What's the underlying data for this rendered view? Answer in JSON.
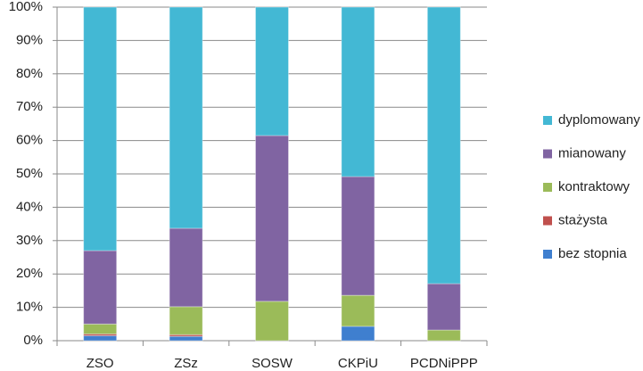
{
  "chart_data": {
    "type": "stacked_bar_100",
    "categories": [
      "ZSO",
      "ZSz",
      "SOSW",
      "CKPiU",
      "PCDNiPPP"
    ],
    "series": [
      {
        "name": "bez stopnia",
        "color": "#3f7fcf",
        "values": [
          1.5,
          1.3,
          0,
          4.3,
          0
        ]
      },
      {
        "name": "stażysta",
        "color": "#c0504d",
        "values": [
          0.5,
          0.5,
          0,
          0,
          0
        ]
      },
      {
        "name": "kontraktowy",
        "color": "#9bbb59",
        "values": [
          3,
          8.4,
          11.8,
          9.3,
          3.2
        ]
      },
      {
        "name": "mianowany",
        "color": "#8064a2",
        "values": [
          22,
          23.5,
          49.7,
          35.6,
          13.9
        ]
      },
      {
        "name": "dyplomowany",
        "color": "#43b8d4",
        "values": [
          73,
          66.3,
          38.5,
          50.8,
          82.9
        ]
      }
    ],
    "ylim": [
      0,
      100
    ],
    "yticks": [
      {
        "value": 0,
        "label": "0%"
      },
      {
        "value": 10,
        "label": "10%"
      },
      {
        "value": 20,
        "label": "20%"
      },
      {
        "value": 30,
        "label": "30%"
      },
      {
        "value": 40,
        "label": "40%"
      },
      {
        "value": 50,
        "label": "50%"
      },
      {
        "value": 60,
        "label": "60%"
      },
      {
        "value": 70,
        "label": "70%"
      },
      {
        "value": 80,
        "label": "80%"
      },
      {
        "value": 90,
        "label": "90%"
      },
      {
        "value": 100,
        "label": "100%"
      }
    ],
    "grid": true,
    "legend": "right"
  }
}
